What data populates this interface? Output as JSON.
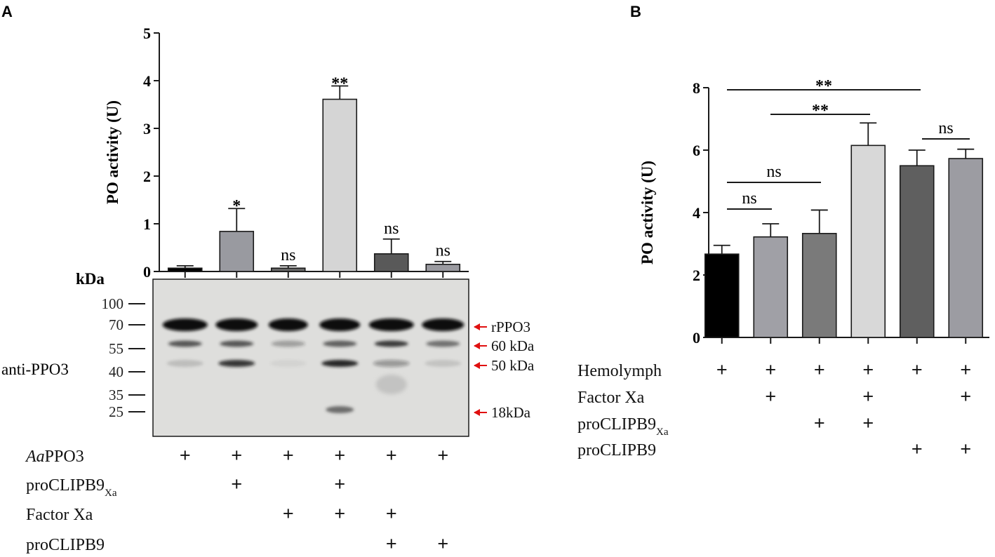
{
  "panel_a": {
    "label": "A",
    "kda_label": "kDa",
    "markers": [
      "100",
      "70",
      "55",
      "40",
      "35",
      "25"
    ],
    "side_label": "anti-PPO3",
    "band_labels": [
      "rPPO3",
      "60 kDa",
      "50 kDa",
      "18kDa"
    ],
    "condition_rows": [
      {
        "prefix": "Aa",
        "label": "PPO3",
        "sub": "",
        "plus": [
          true,
          true,
          true,
          true,
          true,
          true
        ]
      },
      {
        "prefix": "",
        "label": "proCLIPB9",
        "sub": "Xa",
        "plus": [
          false,
          true,
          false,
          true,
          false,
          false
        ]
      },
      {
        "prefix": "",
        "label": "Factor Xa",
        "sub": "",
        "plus": [
          false,
          false,
          true,
          true,
          true,
          false
        ]
      },
      {
        "prefix": "",
        "label": "proCLIPB9",
        "sub": "",
        "plus": [
          false,
          false,
          false,
          false,
          true,
          true
        ]
      }
    ],
    "plus_symbol": "+"
  },
  "panel_b": {
    "label": "B",
    "condition_rows": [
      {
        "label": "Hemolymph",
        "sub": "",
        "plus": [
          true,
          true,
          true,
          true,
          true,
          true
        ]
      },
      {
        "label": "Factor Xa",
        "sub": "",
        "plus": [
          false,
          true,
          false,
          true,
          false,
          true
        ]
      },
      {
        "label": "proCLIPB9",
        "sub": "Xa",
        "plus": [
          false,
          false,
          true,
          true,
          false,
          false
        ]
      },
      {
        "label": "proCLIPB9",
        "sub": "",
        "plus": [
          false,
          false,
          false,
          false,
          true,
          true
        ]
      }
    ],
    "plus_symbol": "+"
  },
  "chart_data": [
    {
      "type": "bar",
      "panel": "A",
      "ylabel": "PO activity (U)",
      "ylim": [
        0,
        5
      ],
      "yticks": [
        0,
        1,
        2,
        3,
        4,
        5
      ],
      "values": [
        0.07,
        0.84,
        0.07,
        3.61,
        0.37,
        0.15
      ],
      "errors": [
        0.05,
        0.48,
        0.05,
        0.28,
        0.31,
        0.06
      ],
      "colors": [
        "#000000",
        "#999aa0",
        "#666666",
        "#d5d5d5",
        "#595959",
        "#9a9aa0"
      ],
      "significance": [
        "",
        "*",
        "ns",
        "**",
        "ns",
        "ns"
      ],
      "grid": false
    },
    {
      "type": "bar",
      "panel": "B",
      "ylabel": "PO activity (U)",
      "ylim": [
        0,
        8
      ],
      "yticks": [
        0,
        2,
        4,
        6,
        8
      ],
      "values": [
        2.67,
        3.22,
        3.33,
        6.15,
        5.5,
        5.73
      ],
      "errors": [
        0.28,
        0.42,
        0.75,
        0.72,
        0.5,
        0.3
      ],
      "colors": [
        "#000000",
        "#a0a0a6",
        "#7a7a7a",
        "#d8d8d8",
        "#5f5f5f",
        "#9c9ca2"
      ],
      "comparisons": [
        {
          "from": 1,
          "to": 2,
          "label": "ns"
        },
        {
          "from": 1,
          "to": 3,
          "label": "ns"
        },
        {
          "from": 2,
          "to": 4,
          "label": "**"
        },
        {
          "from": 1,
          "to": 5,
          "label": "**"
        },
        {
          "from": 5,
          "to": 6,
          "label": "ns"
        }
      ],
      "grid": false
    }
  ]
}
